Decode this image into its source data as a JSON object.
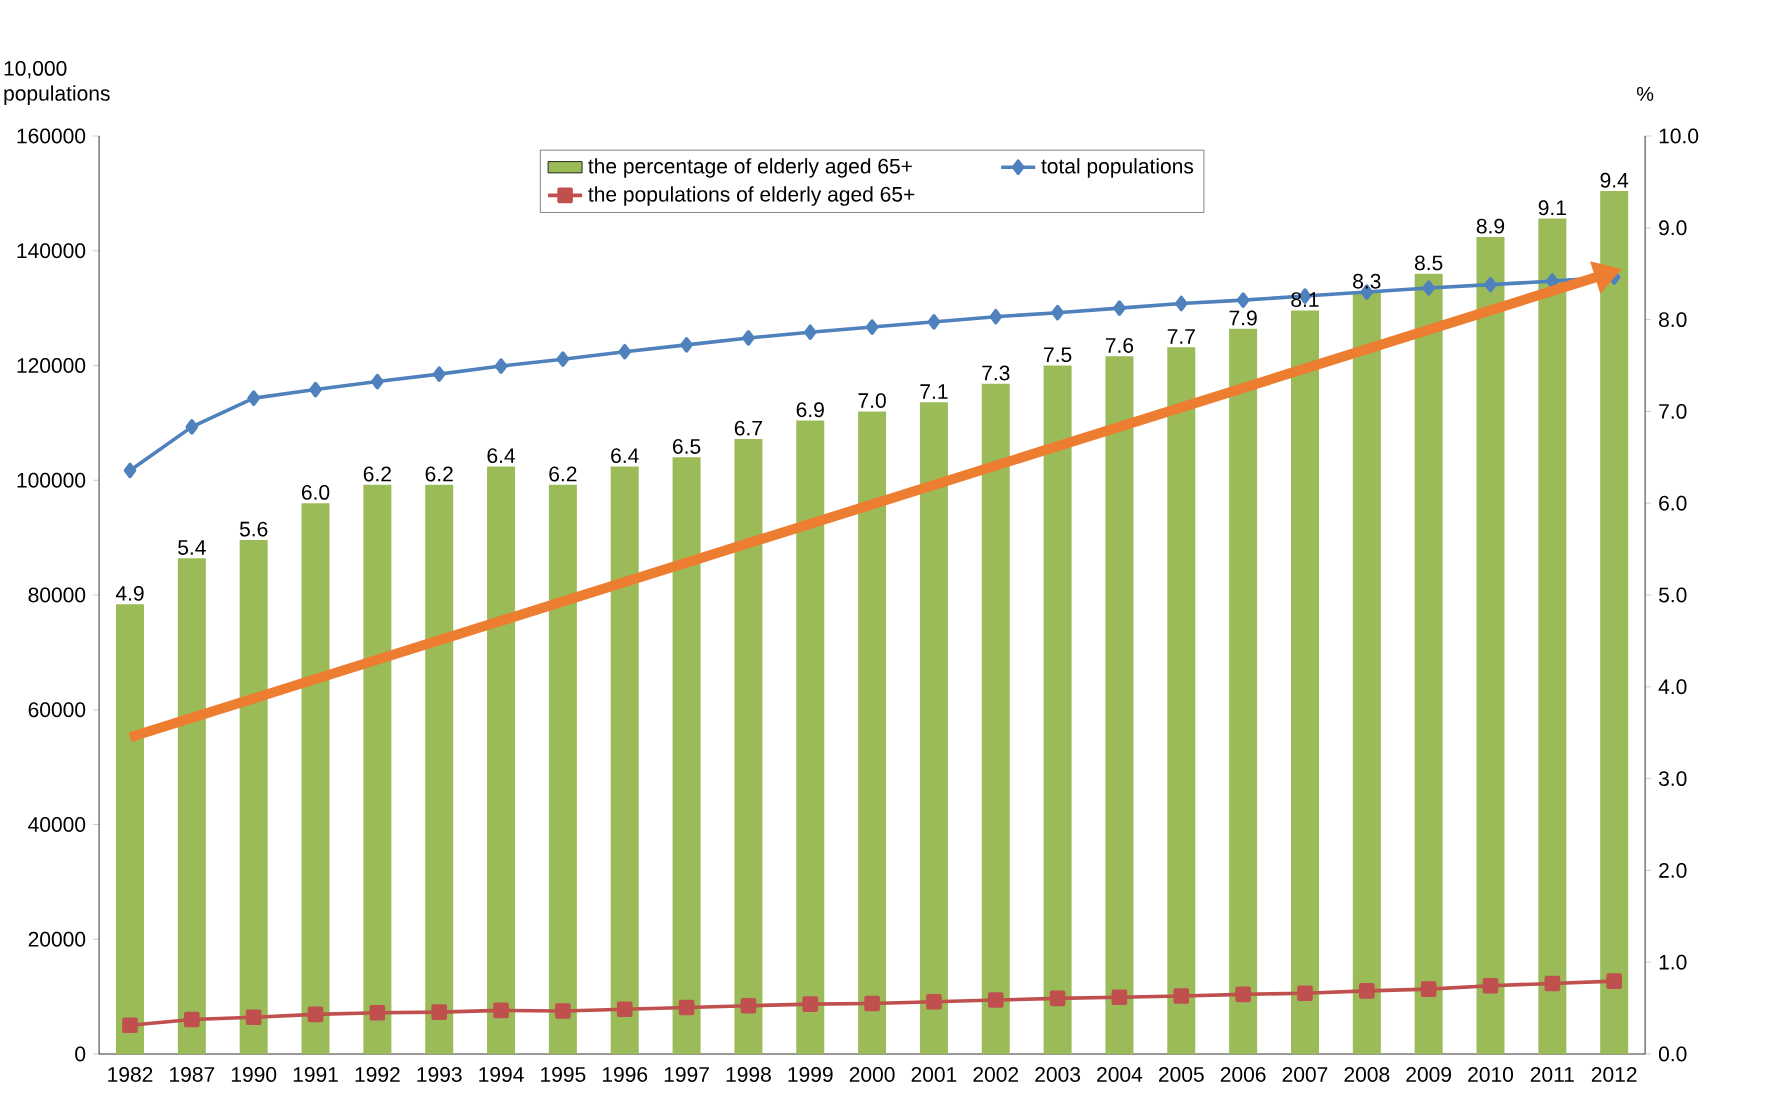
{
  "chart_data": {
    "type": "bar",
    "ylabel": "10,000 populations",
    "y2label": "%",
    "categories": [
      "1982",
      "1987",
      "1990",
      "1991",
      "1992",
      "1993",
      "1994",
      "1995",
      "1996",
      "1997",
      "1998",
      "1999",
      "2000",
      "2001",
      "2002",
      "2003",
      "2004",
      "2005",
      "2006",
      "2007",
      "2008",
      "2009",
      "2010",
      "2011",
      "2012"
    ],
    "series": [
      {
        "name": "the percentage of elderly aged 65+",
        "axis": "y2",
        "color": "#9bbb59",
        "values": [
          4.9,
          5.4,
          5.6,
          6.0,
          6.2,
          6.2,
          6.4,
          6.2,
          6.4,
          6.5,
          6.7,
          6.9,
          7.0,
          7.1,
          7.3,
          7.5,
          7.6,
          7.7,
          7.9,
          8.1,
          8.3,
          8.5,
          8.9,
          9.1,
          9.4
        ],
        "value_labels": [
          "4.9",
          "5.4",
          "5.6",
          "6.0",
          "6.2",
          "6.2",
          "6.4",
          "6.2",
          "6.4",
          "6.5",
          "6.7",
          "6.9",
          "7.0",
          "7.1",
          "7.3",
          "7.5",
          "7.6",
          "7.7",
          "7.9",
          "8.1",
          "8.3",
          "8.5",
          "8.9",
          "9.1",
          "9.4"
        ]
      },
      {
        "name": "total populations",
        "type": "line",
        "color": "#4f81bd",
        "marker": "diamond",
        "values": [
          101700,
          109300,
          114300,
          115800,
          117200,
          118500,
          119900,
          121100,
          122400,
          123600,
          124800,
          125800,
          126700,
          127600,
          128500,
          129200,
          130000,
          130800,
          131400,
          132100,
          132800,
          133500,
          134100,
          134700,
          135400
        ]
      },
      {
        "name": "the populations of elderly aged 65+",
        "type": "line",
        "color": "#c0504d",
        "marker": "square",
        "values": [
          5000,
          6000,
          6400,
          6900,
          7200,
          7300,
          7600,
          7500,
          7800,
          8100,
          8400,
          8700,
          8800,
          9100,
          9400,
          9700,
          9900,
          10100,
          10400,
          10600,
          11000,
          11300,
          11900,
          12300,
          12700
        ]
      }
    ],
    "ylim": [
      0,
      160000
    ],
    "yticks": [
      0,
      20000,
      40000,
      60000,
      80000,
      100000,
      120000,
      140000,
      160000
    ],
    "y2lim": [
      0,
      10
    ],
    "y2ticks": [
      {
        "value": 0,
        "label": "0.0"
      },
      {
        "value": 1,
        "label": "1.0"
      },
      {
        "value": 2,
        "label": "2.0"
      },
      {
        "value": 3,
        "label": "3.0"
      },
      {
        "value": 4,
        "label": "4.0"
      },
      {
        "value": 5,
        "label": "5.0"
      },
      {
        "value": 6,
        "label": "6.0"
      },
      {
        "value": 7,
        "label": "7.0"
      },
      {
        "value": 8,
        "label": "8.0"
      },
      {
        "value": 9,
        "label": "9.0"
      },
      {
        "value": 10,
        "label": "10.0"
      }
    ],
    "legend": "top",
    "grid": false
  }
}
